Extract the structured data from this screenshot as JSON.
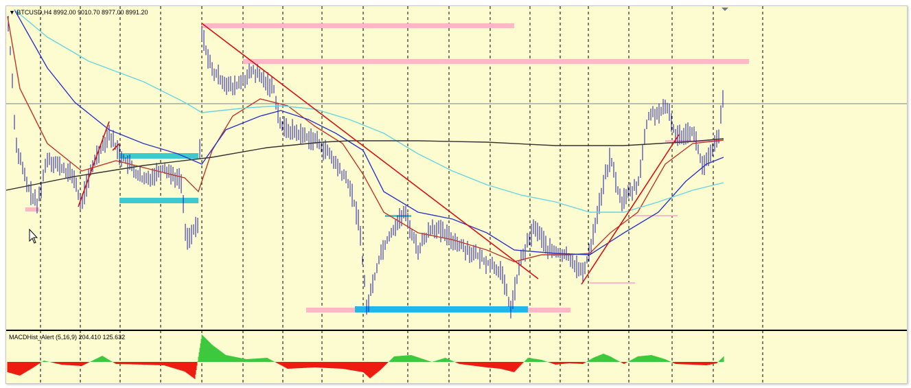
{
  "chart_header": {
    "symbol_line": "▼ BTCUSD,H4  8992.00 9010.70 8977.00 8991.20"
  },
  "indicator_header": {
    "macd_line": "MACDHist_Alert (5,16,9)  204.410 125.632"
  },
  "colors": {
    "background": "#fdfbd0",
    "bars": "#1a1aa8",
    "ma_fast": "#c0352a",
    "ma_slow": "#2a35c8",
    "ma_long": "#66d6e0",
    "ma_200": "#333333",
    "trendline": "#d81010",
    "zone_pink": "#ffb6c6",
    "zone_cyan": "#3ec8d0",
    "zone_blue": "#22b7ea",
    "hist_up": "#3ec83e",
    "hist_down": "#ee1c10",
    "grid": "#000000"
  },
  "chart_data": {
    "type": "candlestick",
    "title": "BTCUSD,H4",
    "ohlc_last": {
      "open": 8992.0,
      "high": 9010.7,
      "low": 8977.0,
      "close": 8991.2
    },
    "indicator": {
      "name": "MACDHist_Alert",
      "params": [
        5,
        16,
        9
      ],
      "values": [
        204.41,
        125.632
      ]
    },
    "grid": true
  }
}
